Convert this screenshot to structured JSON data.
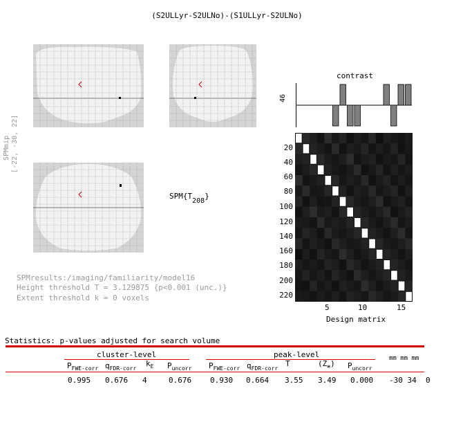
{
  "title": "(S2ULLyr-S2ULNo)-(S1ULLyr-S2ULNo)",
  "side_label": {
    "line1": "SPMmip",
    "line2": "[-22, -30, 22]"
  },
  "spm_label": {
    "main": "SPM{T",
    "sub": "208",
    "close": "}"
  },
  "results_info": {
    "line1": "SPMresults:/imaging/familiarity/model16",
    "line2": "Height threshold T = 3.129875  {p<0.001 (unc.)}",
    "line3": "Extent threshold k = 0 voxels"
  },
  "contrast": {
    "title": "contrast",
    "ylabel": "46",
    "weights": [
      0,
      0,
      0,
      0,
      0,
      -1,
      1,
      -1,
      -1,
      0,
      0,
      0,
      1,
      -1,
      1,
      1
    ]
  },
  "design_matrix": {
    "xlabel": "Design matrix",
    "y_ticks": [
      "20",
      "40",
      "60",
      "80",
      "100",
      "120",
      "140",
      "160",
      "180",
      "200",
      "220"
    ],
    "x_ticks": [
      "5",
      "10",
      "15"
    ]
  },
  "statistics": {
    "header": "Statistics:  p-values adjusted for search volume",
    "cluster_level": "cluster-level",
    "peak_level": "peak-level",
    "col_headers": {
      "c_pfwe": "P",
      "c_pfwe_sub": "FWE-corr",
      "c_qfdr": "q",
      "c_qfdr_sub": "FDR-corr",
      "c_ke": "k",
      "c_ke_sub": "E",
      "c_punc": "P",
      "c_punc_sub": "uncorr",
      "p_pfwe": "P",
      "p_pfwe_sub": "FWE-corr",
      "p_qfdr": "q",
      "p_qfdr_sub": "FDR-corr",
      "p_t": "T",
      "p_z": "(Z",
      "p_z_sub": "≡",
      "p_z_close": ")",
      "p_punc": "P",
      "p_punc_sub": "uncorr",
      "mm": "mm mm mm"
    },
    "row": {
      "c_pfwe": "0.995",
      "c_qfdr": "0.676",
      "c_ke": "4",
      "c_punc": "0.676",
      "p_pfwe": "0.930",
      "p_qfdr": "0.664",
      "p_t": "3.55",
      "p_z": "3.49",
      "p_punc": "0.000",
      "coords": "-30 34  0"
    }
  },
  "colors": {
    "accent_red": "#d40000",
    "glass_bg": "#d4d4d4",
    "brain": "#f2f2f2"
  }
}
